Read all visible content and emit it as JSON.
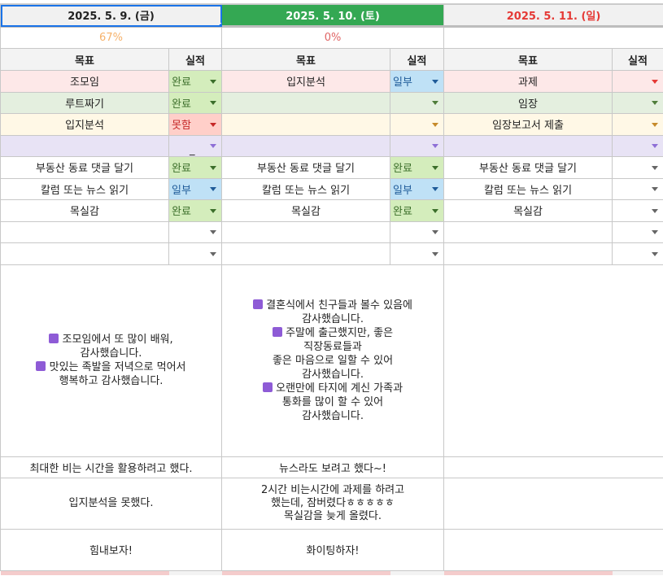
{
  "colors": {
    "row_bg": [
      "#fde8e8",
      "#e4efdf",
      "#fff8e6",
      "#e8e3f5"
    ],
    "arrow": [
      "#e53935",
      "#4f7d3a",
      "#c68a2a",
      "#8e6fd6"
    ],
    "status": {
      "완료": {
        "bg": "#d4edbc",
        "fg": "#3b6e2a",
        "arrow": "#3b6e2a"
      },
      "못함": {
        "bg": "#ffcfc9",
        "fg": "#c62828",
        "arrow": "#c62828"
      },
      "일부": {
        "bg": "#bfe1f6",
        "fg": "#1f5b99",
        "arrow": "#1f5b99"
      },
      "_": {
        "bg": "#e8e3f5",
        "fg": "#222",
        "arrow": "#8e6fd6"
      }
    }
  },
  "headers": {
    "goal": "목표",
    "result": "실적"
  },
  "days": [
    {
      "date": "2025. 5. 9. (금)",
      "style": "sel",
      "percent": "67%",
      "percent_color": "#f6b26b",
      "goals": [
        [
          "조모임",
          "완료"
        ],
        [
          "루트짜기",
          "완료"
        ],
        [
          "입지분석",
          "못함"
        ],
        [
          "",
          "_"
        ],
        [
          "부동산 동료 댓글 달기",
          "완료"
        ],
        [
          "칼럼 또는 뉴스 읽기",
          "일부"
        ],
        [
          "목실감",
          "완료"
        ],
        [
          "",
          ""
        ],
        [
          "",
          ""
        ]
      ],
      "gratitude": [
        {
          "heart": true,
          "text": "조모임에서 또 많이 배워,\n감사했습니다."
        },
        {
          "heart": true,
          "text": "맛있는 족발을 저녁으로 먹어서\n행복하고 감사했습니다."
        }
      ],
      "note1": "최대한 비는 시간을 활용하려고 했다.",
      "note2": "입지분석을 못했다.",
      "note3": "힘내보자!"
    },
    {
      "date": "2025. 5. 10. (토)",
      "style": "green",
      "percent": "0%",
      "percent_color": "#e06666",
      "goals": [
        [
          "입지분석",
          "일부"
        ],
        [
          "",
          ""
        ],
        [
          "",
          ""
        ],
        [
          "",
          ""
        ],
        [
          "부동산 동료 댓글 달기",
          "완료"
        ],
        [
          "칼럼 또는 뉴스 읽기",
          "일부"
        ],
        [
          "목실감",
          "완료"
        ],
        [
          "",
          ""
        ],
        [
          "",
          ""
        ]
      ],
      "gratitude": [
        {
          "heart": true,
          "text": "결혼식에서 친구들과 볼수 있음에\n감사했습니다."
        },
        {
          "heart": true,
          "text": "주말에 출근했지만, 좋은\n직장동료들과\n좋은 마음으로 일할 수 있어\n감사했습니다."
        },
        {
          "heart": true,
          "text": "오랜만에 타지에 계신 가족과\n통화를 많이 할 수 있어\n감사했습니다."
        }
      ],
      "note1": "뉴스라도 보려고 했다~!",
      "note2": "2시간 비는시간에 과제를 하려고\n했는데, 잠버렸다ㅎㅎㅎㅎㅎ\n목실감을 늦게 올렸다.",
      "note3": "화이팅하자!"
    },
    {
      "date": "2025. 5. 11. (일)",
      "style": "red",
      "percent": "",
      "percent_color": "#e06666",
      "goals": [
        [
          "과제",
          ""
        ],
        [
          "임장",
          ""
        ],
        [
          "임장보고서 제출",
          ""
        ],
        [
          "",
          ""
        ],
        [
          "부동산 동료 댓글 달기",
          ""
        ],
        [
          "칼럼 또는 뉴스 읽기",
          ""
        ],
        [
          "목실감",
          ""
        ],
        [
          "",
          ""
        ],
        [
          "",
          ""
        ]
      ],
      "gratitude": [],
      "note1": "",
      "note2": "",
      "note3": ""
    }
  ]
}
